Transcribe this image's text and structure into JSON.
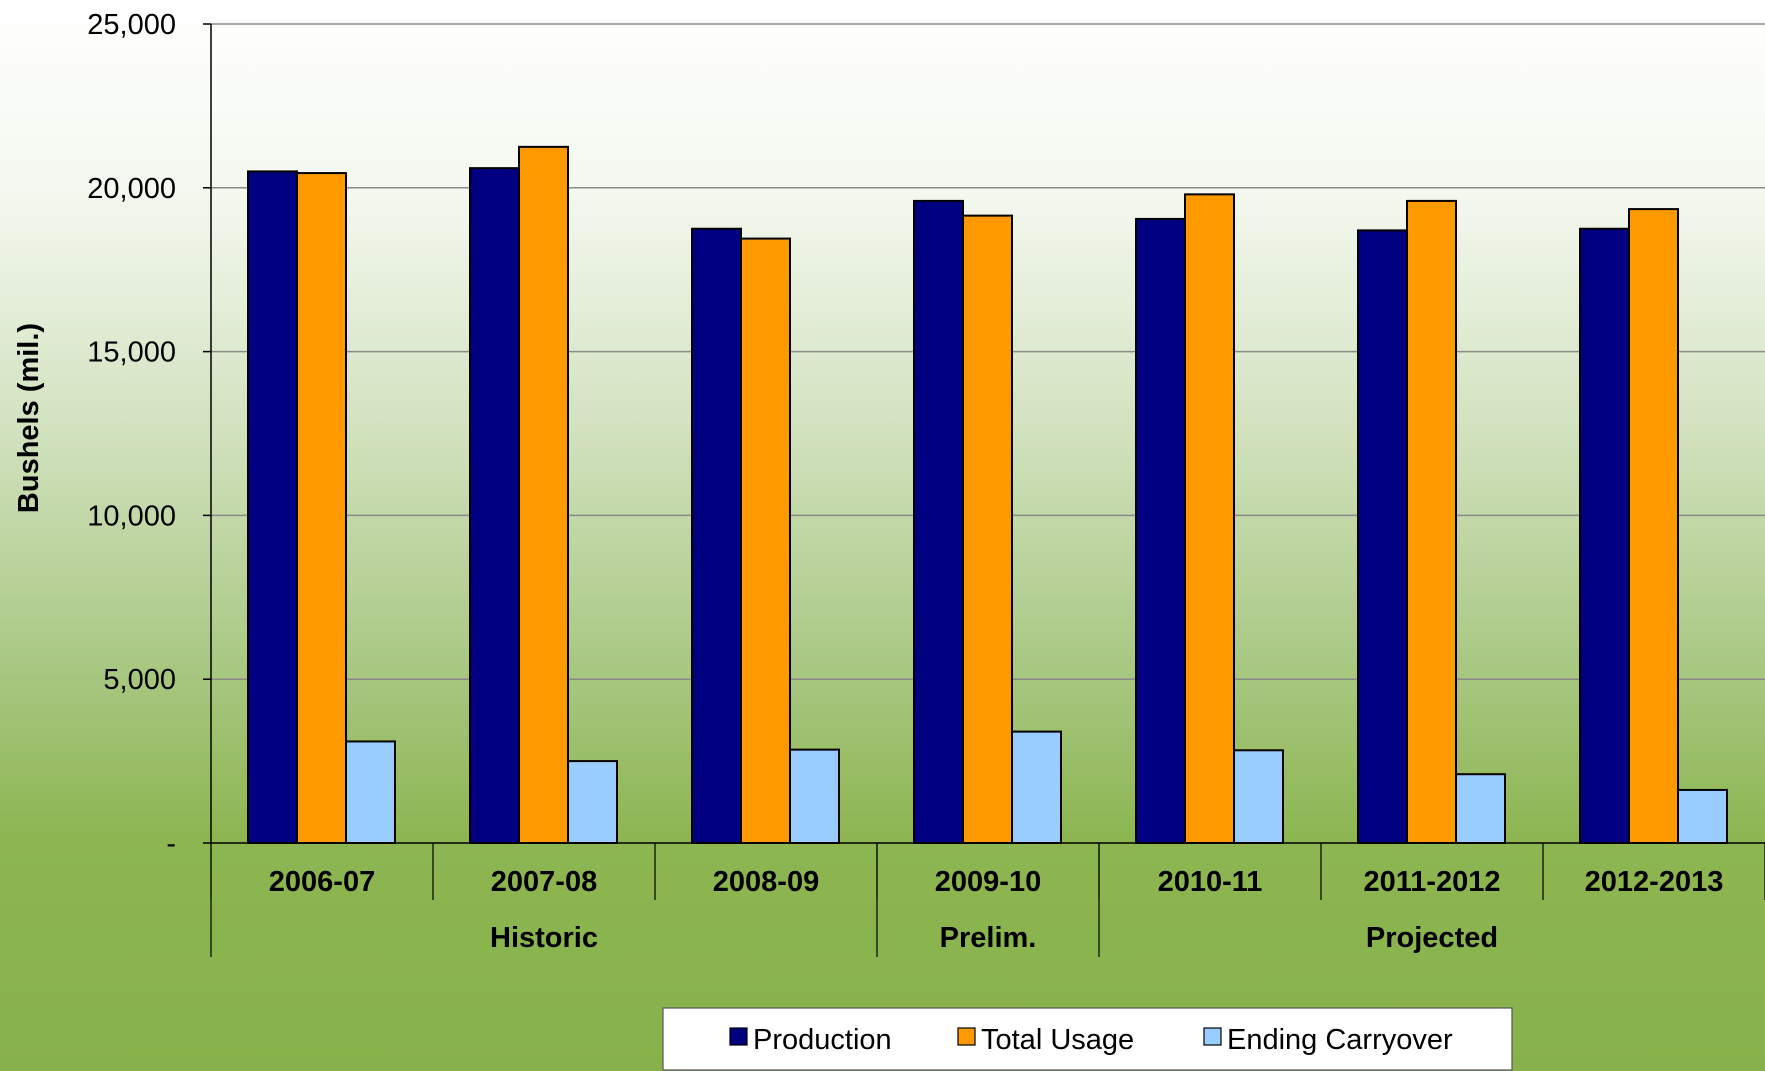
{
  "chart_data": {
    "type": "bar",
    "ylabel": "Bushels (mil.)",
    "ylim": [
      0,
      25000
    ],
    "yticks": [
      0,
      5000,
      10000,
      15000,
      20000,
      25000
    ],
    "ytick_labels": [
      "-",
      "5,000",
      "10,000",
      "15,000",
      "20,000",
      "25,000"
    ],
    "grid": true,
    "legend_position": "bottom-center",
    "categories": [
      "2006-07",
      "2007-08",
      "2008-09",
      "2009-10",
      "2010-11",
      "2011-2012",
      "2012-2013"
    ],
    "groups": [
      {
        "label": "Historic",
        "categories": [
          "2006-07",
          "2007-08",
          "2008-09"
        ]
      },
      {
        "label": "Prelim.",
        "categories": [
          "2009-10"
        ]
      },
      {
        "label": "Projected",
        "categories": [
          "2010-11",
          "2011-2012",
          "2012-2013"
        ]
      }
    ],
    "series": [
      {
        "name": "Production",
        "color": "#000080",
        "values": [
          20500,
          20600,
          18750,
          19600,
          19050,
          18700,
          18750
        ]
      },
      {
        "name": "Total Usage",
        "color": "#ff9900",
        "values": [
          20450,
          21250,
          18450,
          19150,
          19800,
          19600,
          19350
        ]
      },
      {
        "name": "Ending Carryover",
        "color": "#99ccff",
        "values": [
          3100,
          2500,
          2850,
          3400,
          2830,
          2100,
          1620
        ]
      }
    ]
  }
}
